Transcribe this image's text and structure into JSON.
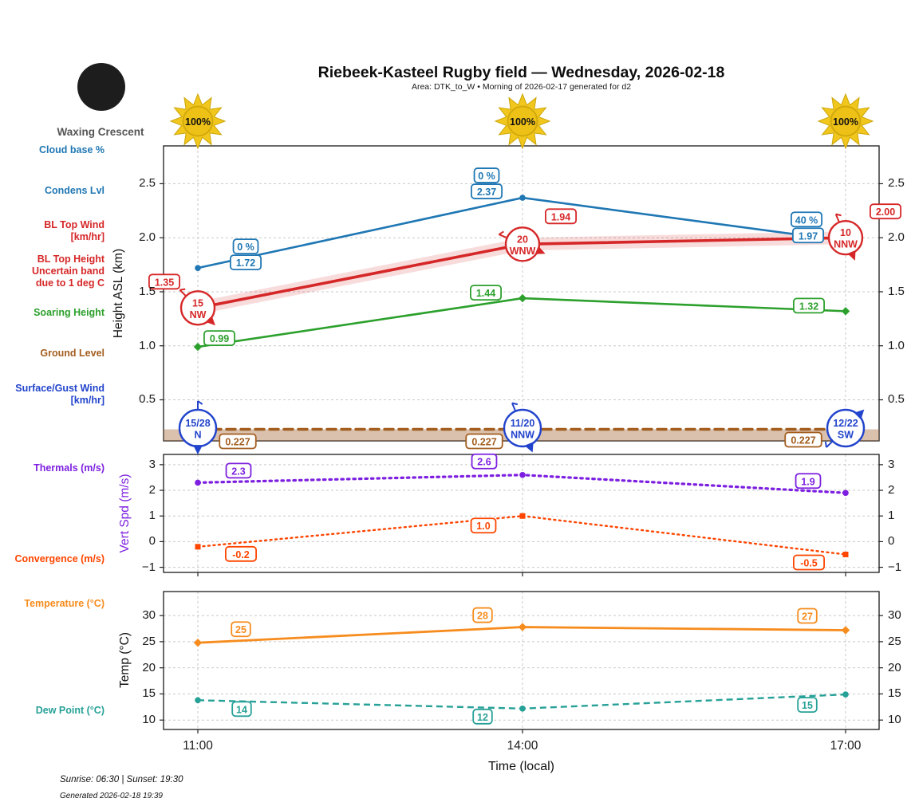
{
  "header": {
    "title": "Riebeek-Kasteel Rugby field — Wednesday, 2026-02-18",
    "subtitle": "Area: DTK_to_W • Morning of 2026-02-17 generated for d2",
    "moon_phase": "Waxing Crescent",
    "sunshine": [
      "100%",
      "100%",
      "100%"
    ]
  },
  "legend": {
    "cloud_base": {
      "label": "Cloud base %",
      "color": "#1f77b4"
    },
    "condens_lvl": {
      "label": "Condens Lvl",
      "color": "#1f77b4"
    },
    "bl_top_wind": {
      "label": "BL Top Wind\n[km/hr]",
      "color": "#d62728"
    },
    "bl_top_height": {
      "label": "BL Top Height\nUncertain band\ndue to 1 deg C",
      "color": "#d62728"
    },
    "soaring_height": {
      "label": "Soaring Height",
      "color": "#2ca02c"
    },
    "ground_level": {
      "label": "Ground Level",
      "color": "#a35d1e"
    },
    "surface_wind": {
      "label": "Surface/Gust Wind\n[km/hr]",
      "color": "#2244cc"
    },
    "thermals": {
      "label": "Thermals (m/s)",
      "color": "#7d1fe0"
    },
    "convergence": {
      "label": "Convergence (m/s)",
      "color": "#ff4500"
    },
    "temperature": {
      "label": "Temperature (°C)",
      "color": "#f78c1e"
    },
    "dew_point": {
      "label": "Dew Point (°C)",
      "color": "#26a197"
    }
  },
  "x_axis": {
    "label": "Time (local)",
    "ticks": [
      "11:00",
      "14:00",
      "17:00"
    ]
  },
  "chart_data": [
    {
      "type": "line",
      "ylabel": "Height ASL (km)",
      "ylim": [
        0.12,
        2.85
      ],
      "yticks": [
        2.5,
        2.0,
        1.5,
        1.0,
        0.5
      ],
      "x": [
        "11:00",
        "14:00",
        "17:00"
      ],
      "grid": true,
      "series": [
        {
          "name": "Condens Lvl",
          "color": "#1f77b4",
          "style": "solid",
          "marker": "circle",
          "values": [
            1.72,
            2.37,
            1.97
          ],
          "value_labels": [
            "1.72",
            "2.37",
            "1.97"
          ],
          "cloud_base_labels": [
            "0 %",
            "0 %",
            "40 %"
          ]
        },
        {
          "name": "BL Top",
          "color": "#d62728",
          "style": "solid",
          "marker": "none",
          "band_color": "rgba(214,39,40,0.16)",
          "values": [
            1.35,
            1.94,
            2.0
          ],
          "value_labels": [
            "1.35",
            "1.94",
            "2.00"
          ],
          "wind": [
            {
              "speed": "15",
              "dir": "NW"
            },
            {
              "speed": "20",
              "dir": "WNW"
            },
            {
              "speed": "10",
              "dir": "NNW"
            }
          ]
        },
        {
          "name": "Soaring Height",
          "color": "#2ca02c",
          "style": "solid",
          "marker": "diamond",
          "values": [
            0.99,
            1.44,
            1.32
          ],
          "value_labels": [
            "0.99",
            "1.44",
            "1.32"
          ]
        },
        {
          "name": "Ground Level",
          "color": "#a35d1e",
          "style": "dashed",
          "marker": "none",
          "fill_below": "rgba(167,108,60,0.42)",
          "values": [
            0.227,
            0.227,
            0.227
          ],
          "value_labels": [
            "0.227",
            "0.227",
            "0.227"
          ]
        }
      ],
      "surface_gust_wind": [
        {
          "label": "15/28",
          "dir": "N"
        },
        {
          "label": "11/20",
          "dir": "NNW"
        },
        {
          "label": "12/22",
          "dir": "SW"
        }
      ]
    },
    {
      "type": "line",
      "ylabel": "Vert Spd (m/s)",
      "ylim": [
        -1.2,
        3.4
      ],
      "yticks": [
        3,
        2,
        1,
        0,
        -1
      ],
      "x": [
        "11:00",
        "14:00",
        "17:00"
      ],
      "grid": true,
      "series": [
        {
          "name": "Thermals (m/s)",
          "color": "#7d1fe0",
          "style": "dotted",
          "marker": "circle",
          "values": [
            2.3,
            2.6,
            1.9
          ],
          "value_labels": [
            "2.3",
            "2.6",
            "1.9"
          ]
        },
        {
          "name": "Convergence (m/s)",
          "color": "#ff4500",
          "style": "dotted",
          "marker": "square",
          "values": [
            -0.2,
            1.0,
            -0.5
          ],
          "value_labels": [
            "-0.2",
            "1.0",
            "-0.5"
          ]
        }
      ]
    },
    {
      "type": "line",
      "ylabel": "Temp (°C)",
      "ylim": [
        8.2,
        34.6
      ],
      "yticks": [
        30,
        25,
        20,
        15,
        10
      ],
      "x": [
        "11:00",
        "14:00",
        "17:00"
      ],
      "grid": true,
      "series": [
        {
          "name": "Temperature (°C)",
          "color": "#f78c1e",
          "style": "solid",
          "marker": "diamond",
          "values": [
            24.8,
            27.8,
            27.2
          ],
          "value_labels": [
            "25",
            "28",
            "27"
          ]
        },
        {
          "name": "Dew Point (°C)",
          "color": "#26a197",
          "style": "dashed",
          "marker": "circle",
          "values": [
            13.8,
            12.2,
            14.9
          ],
          "value_labels": [
            "14",
            "12",
            "15"
          ]
        }
      ]
    }
  ],
  "footer": {
    "sun_times": "Sunrise: 06:30 | Sunset: 19:30",
    "generated": "Generated 2026-02-18 19:39"
  }
}
